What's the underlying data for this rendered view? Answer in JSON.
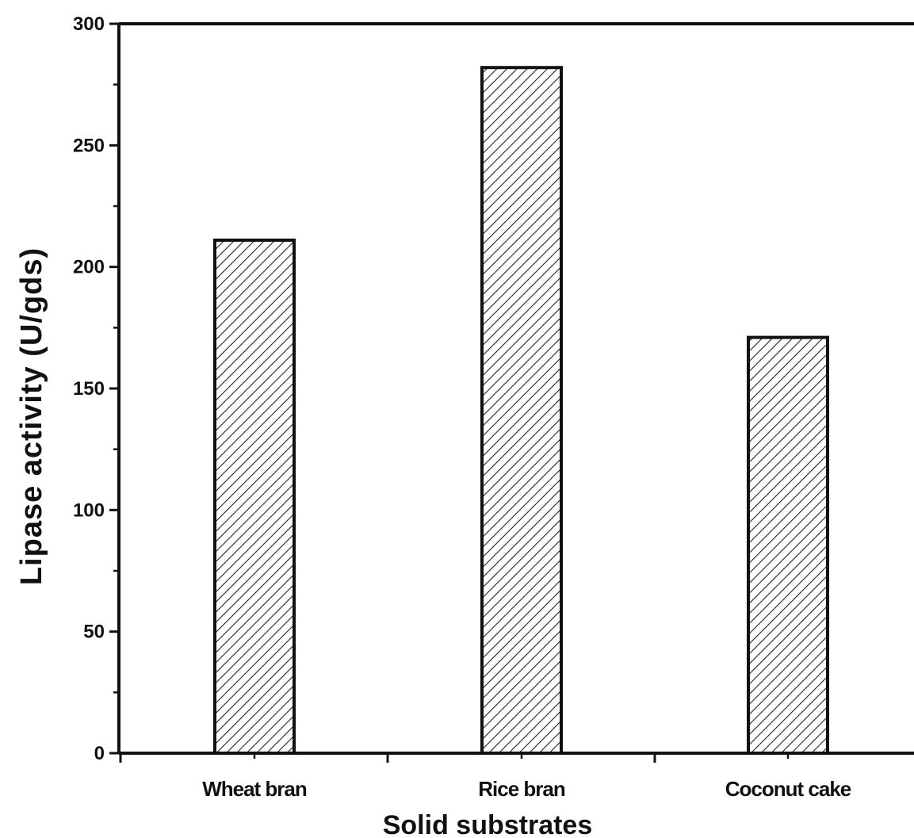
{
  "chart_data": {
    "type": "bar",
    "title": "",
    "xlabel": "Solid substrates",
    "ylabel": "Lipase activity (U/gds)",
    "categories": [
      "Wheat bran",
      "Rice bran",
      "Coconut cake"
    ],
    "values": [
      211,
      282,
      171
    ],
    "ylim": [
      0,
      300
    ],
    "yticks": [
      0,
      50,
      100,
      150,
      200,
      250,
      300
    ],
    "ytick_labels": [
      "0",
      "50",
      "100",
      "150",
      "200",
      "250",
      "300"
    ],
    "grid": false,
    "legend": "none",
    "bar_fill": "diagonal-hatch",
    "bar_color": "#111111"
  }
}
